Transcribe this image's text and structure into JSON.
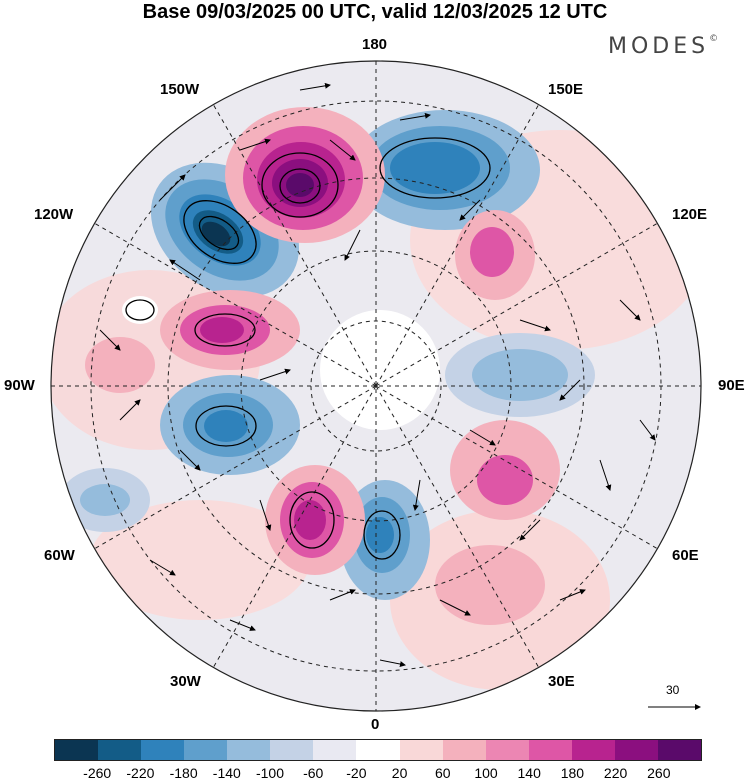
{
  "title": "Base 09/03/2025 00 UTC, valid 12/03/2025 12 UTC",
  "logo": {
    "text": "MODES",
    "mark": "©"
  },
  "longitude_labels": {
    "top": "180",
    "bottom": "0",
    "left": "90W",
    "right": "90E",
    "upper_left_inner": "150W",
    "upper_left_outer": "120W",
    "upper_right_inner": "150E",
    "upper_right_outer": "120E",
    "lower_left_outer": "60W",
    "lower_left_inner": "30W",
    "lower_right_outer": "60E",
    "lower_right_inner": "30E"
  },
  "vector_scale": {
    "label": "30"
  },
  "colorbar": {
    "colors": [
      "#0b3552",
      "#135c87",
      "#2f82bb",
      "#5f9fcc",
      "#95bcdc",
      "#c4d2e6",
      "#e9e9f2",
      "#ffffff",
      "#f9d8d8",
      "#f4b1bd",
      "#ec86b3",
      "#de56a6",
      "#b8238f",
      "#8b0f7f",
      "#5a0a6a"
    ],
    "tick_labels": [
      "-260",
      "-220",
      "-180",
      "-140",
      "-100",
      "-60",
      "-20",
      "20",
      "60",
      "100",
      "140",
      "180",
      "220",
      "260"
    ]
  }
}
